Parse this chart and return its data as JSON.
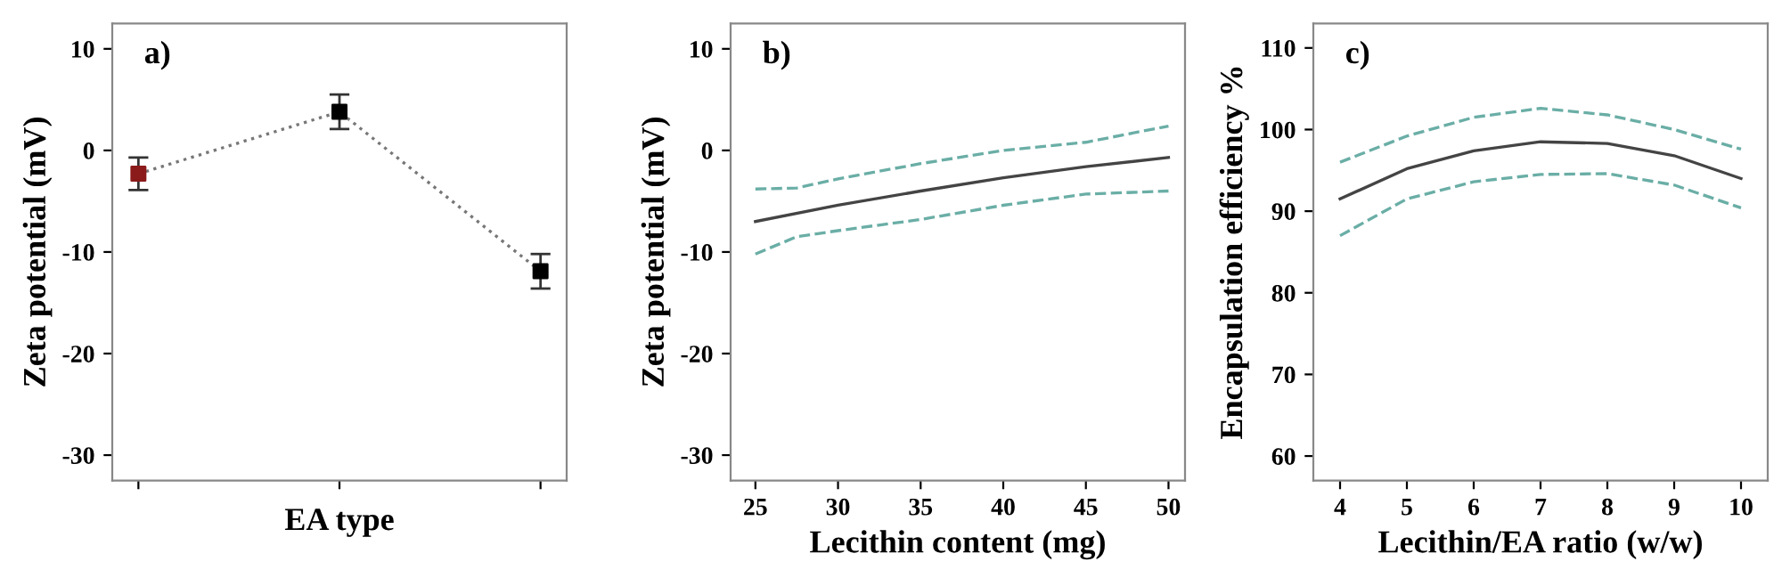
{
  "chart_data": [
    {
      "type": "line",
      "ylabel": "Zeta potential (mV)",
      "xlabel": "EA type",
      "annotations": [
        "a)"
      ],
      "categories": [
        null,
        null,
        null
      ],
      "series": [
        {
          "color": "#777777",
          "colors": [
            "#8b1a1a",
            "#000000",
            "#000000"
          ],
          "values": [
            -2.3,
            3.8,
            -11.9
          ],
          "errors": [
            1.6,
            1.7,
            1.7
          ]
        }
      ],
      "ylim": [
        -32.5,
        12.5
      ],
      "yticks": [
        -30,
        -20,
        -10,
        0,
        10
      ],
      "marker": "square",
      "line_style": "dotted",
      "grid": false
    },
    {
      "type": "line",
      "ylabel": "Zeta potential (mV)",
      "xlabel": "Lecithin content (mg)",
      "annotations": [
        "b)"
      ],
      "series": [
        {
          "color": "#444444",
          "line_style": "solid",
          "x": [
            25,
            30,
            35,
            40,
            45,
            50
          ],
          "values": [
            -7,
            -5.4,
            -4,
            -2.7,
            -1.6,
            -0.7
          ]
        },
        {
          "color": "#6aaea6",
          "line_style": "dashed",
          "x": [
            25,
            27.5,
            30,
            35,
            40,
            45,
            50
          ],
          "values": [
            -3.8,
            -3.7,
            -2.8,
            -1.3,
            0,
            0.8,
            2.4
          ]
        },
        {
          "color": "#6aaea6",
          "line_style": "dashed",
          "x": [
            25,
            27.5,
            30,
            35,
            40,
            45,
            50
          ],
          "values": [
            -10.2,
            -8.5,
            -7.9,
            -6.8,
            -5.4,
            -4.3,
            -4.0
          ]
        }
      ],
      "xlim": [
        23.5,
        51
      ],
      "xticks": [
        25,
        30,
        35,
        40,
        45,
        50
      ],
      "ylim": [
        -32.5,
        12.5
      ],
      "yticks": [
        -30,
        -20,
        -10,
        0,
        10
      ],
      "grid": false
    },
    {
      "type": "line",
      "ylabel": "Encapsulation efficiency %",
      "xlabel": "Lecithin/EA ratio (w/w)",
      "annotations": [
        "c)"
      ],
      "series": [
        {
          "color": "#444444",
          "line_style": "solid",
          "x": [
            4,
            5,
            6,
            7,
            8,
            9,
            10
          ],
          "values": [
            91.5,
            95.2,
            97.4,
            98.5,
            98.3,
            96.8,
            94
          ]
        },
        {
          "color": "#6aaea6",
          "line_style": "dashed",
          "x": [
            4,
            5,
            6,
            7,
            8,
            9,
            10
          ],
          "values": [
            96,
            99.2,
            101.5,
            102.6,
            101.8,
            100,
            97.6
          ]
        },
        {
          "color": "#6aaea6",
          "line_style": "dashed",
          "x": [
            4,
            5,
            6,
            7,
            8,
            9,
            10
          ],
          "values": [
            87,
            91.5,
            93.6,
            94.5,
            94.6,
            93.2,
            90.4
          ]
        }
      ],
      "xlim": [
        3.6,
        10.4
      ],
      "xticks": [
        4,
        5,
        6,
        7,
        8,
        9,
        10
      ],
      "ylim": [
        57,
        113
      ],
      "yticks": [
        60,
        70,
        80,
        90,
        100,
        110
      ],
      "grid": false
    }
  ]
}
